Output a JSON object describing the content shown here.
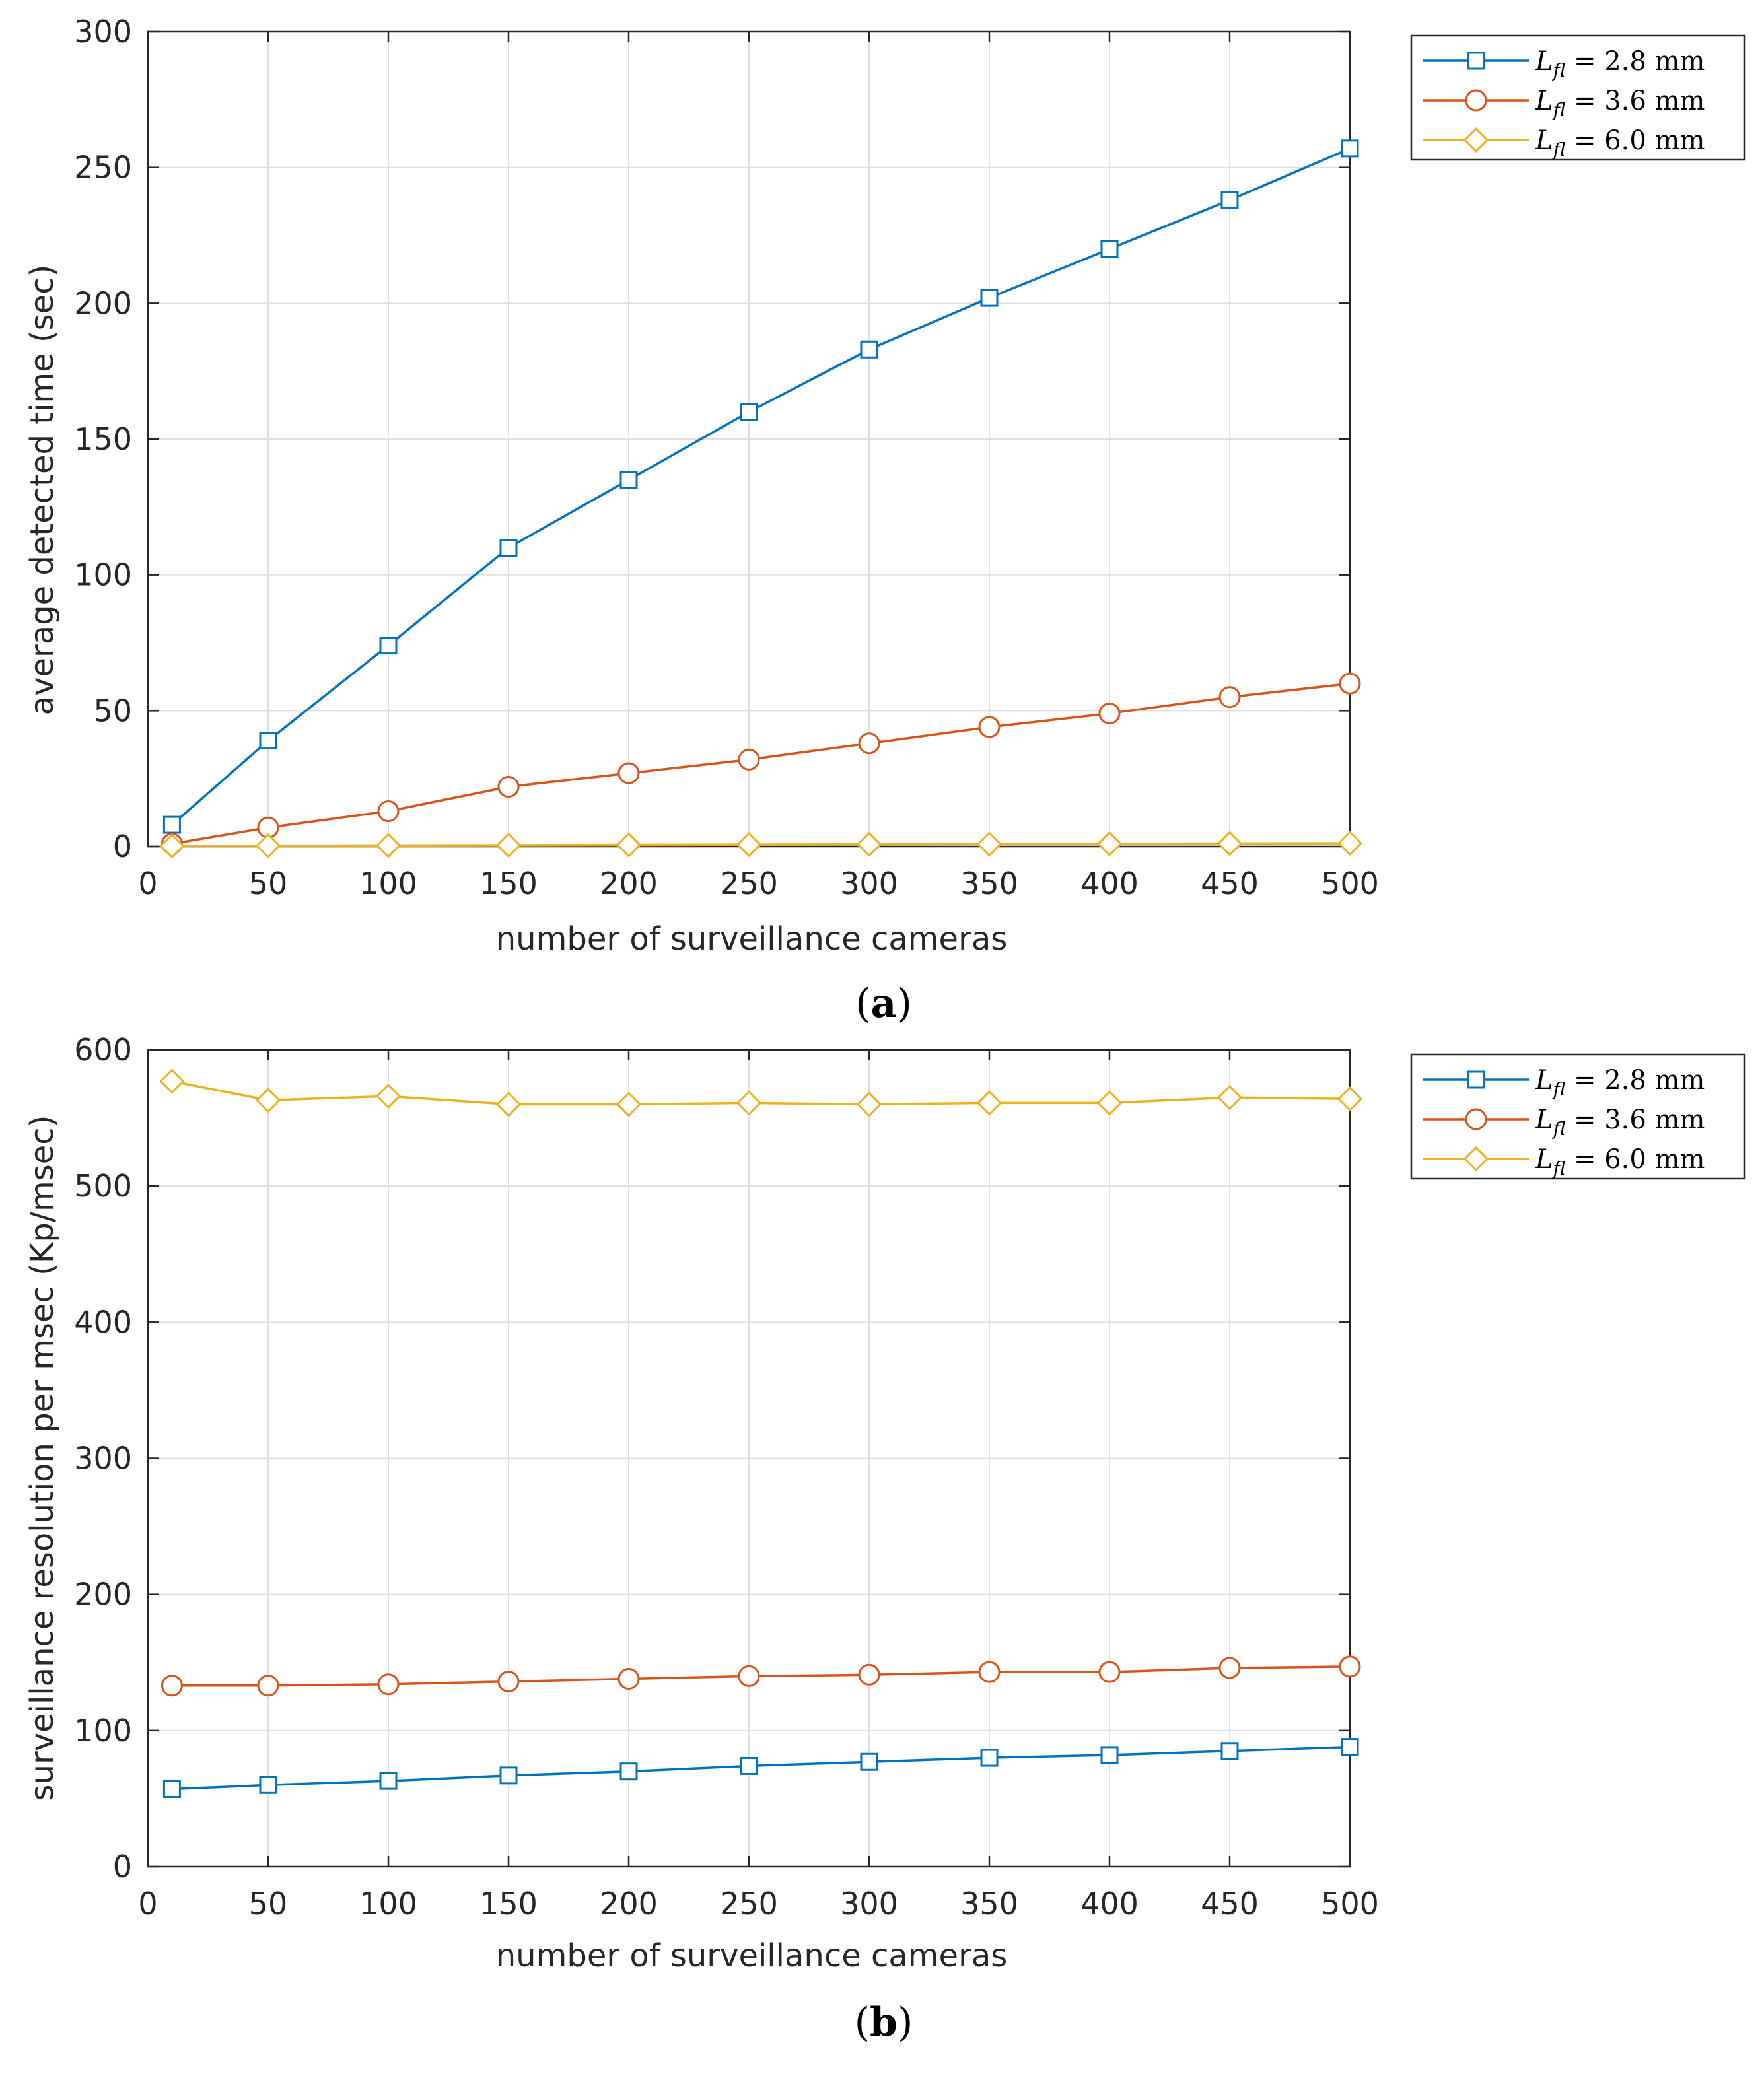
{
  "figure_captions": {
    "a": "a",
    "b": "b"
  },
  "legend_template": {
    "symbol": "L",
    "subscript": "fl",
    "unit": "mm"
  },
  "colors": {
    "blue": "#0072BD",
    "orange": "#D95319",
    "yellow": "#EDB120",
    "grid": "#dfdfdf",
    "axis": "#262626"
  },
  "chart_data": [
    {
      "type": "line",
      "panel": "a",
      "title": "",
      "xlabel": "number of surveillance cameras",
      "ylabel": "average detected time (sec)",
      "xlim": [
        0,
        500
      ],
      "ylim": [
        0,
        300
      ],
      "xticks": [
        0,
        50,
        100,
        150,
        200,
        250,
        300,
        350,
        400,
        450,
        500
      ],
      "yticks": [
        0,
        50,
        100,
        150,
        200,
        250,
        300
      ],
      "grid": true,
      "legend_position": "outside-top-right",
      "x": [
        10,
        50,
        100,
        150,
        200,
        250,
        300,
        350,
        400,
        450,
        500
      ],
      "series": [
        {
          "name": "L_fl = 2.8 mm",
          "value_label": "2.8",
          "color": "#0072BD",
          "marker": "square",
          "values": [
            8,
            39,
            74,
            110,
            135,
            160,
            183,
            202,
            220,
            238,
            257
          ]
        },
        {
          "name": "L_fl = 3.6 mm",
          "value_label": "3.6",
          "color": "#D95319",
          "marker": "circle",
          "values": [
            1,
            7,
            13,
            22,
            27,
            32,
            38,
            44,
            49,
            55,
            60
          ]
        },
        {
          "name": "L_fl = 6.0 mm",
          "value_label": "6.0",
          "color": "#EDB120",
          "marker": "diamond",
          "values": [
            0.2,
            0.3,
            0.4,
            0.5,
            0.6,
            0.7,
            0.8,
            0.9,
            1.0,
            1.1,
            1.2
          ]
        }
      ]
    },
    {
      "type": "line",
      "panel": "b",
      "title": "",
      "xlabel": "number of surveillance cameras",
      "ylabel": "surveillance resolution per msec (Kp/msec)",
      "xlim": [
        0,
        500
      ],
      "ylim": [
        0,
        600
      ],
      "xticks": [
        0,
        50,
        100,
        150,
        200,
        250,
        300,
        350,
        400,
        450,
        500
      ],
      "yticks": [
        0,
        100,
        200,
        300,
        400,
        500,
        600
      ],
      "grid": true,
      "legend_position": "outside-top-right",
      "x": [
        10,
        50,
        100,
        150,
        200,
        250,
        300,
        350,
        400,
        450,
        500
      ],
      "series": [
        {
          "name": "L_fl = 2.8 mm",
          "value_label": "2.8",
          "color": "#0072BD",
          "marker": "square",
          "values": [
            57,
            60,
            63,
            67,
            70,
            74,
            77,
            80,
            82,
            85,
            88
          ]
        },
        {
          "name": "L_fl = 3.6 mm",
          "value_label": "3.6",
          "color": "#D95319",
          "marker": "circle",
          "values": [
            133,
            133,
            134,
            136,
            138,
            140,
            141,
            143,
            143,
            146,
            147
          ]
        },
        {
          "name": "L_fl = 6.0 mm",
          "value_label": "6.0",
          "color": "#EDB120",
          "marker": "diamond",
          "values": [
            577,
            563,
            566,
            560,
            560,
            561,
            560,
            561,
            561,
            565,
            564
          ]
        }
      ]
    }
  ]
}
